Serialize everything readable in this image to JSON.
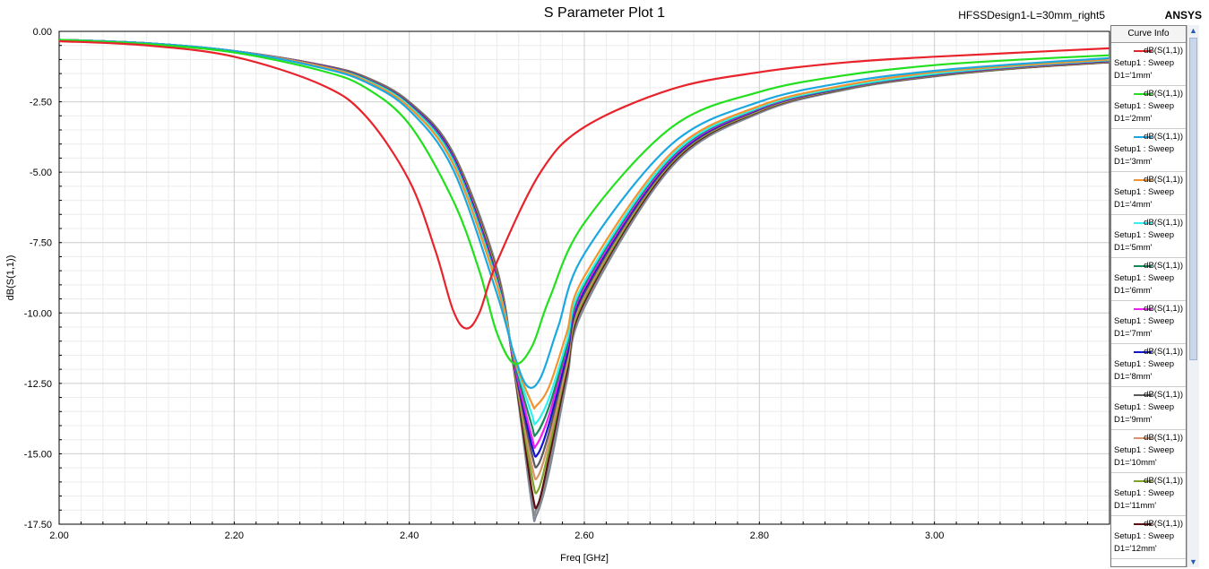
{
  "header": {
    "title": "S Parameter Plot 1",
    "design": "HFSSDesign1-L=30mm_right5",
    "brand": "ANSYS"
  },
  "legend": {
    "title": "Curve Info"
  },
  "chart_data": {
    "type": "line",
    "title": "S Parameter Plot 1",
    "xlabel": "Freq [GHz]",
    "ylabel": "dB(S(1,1))",
    "xlim": [
      2.0,
      3.2
    ],
    "ylim": [
      -17.5,
      0.0
    ],
    "x_ticks": [
      "2.00",
      "2.20",
      "2.40",
      "2.60",
      "2.80",
      "3.00"
    ],
    "y_ticks": [
      "0.00",
      "-2.50",
      "-5.00",
      "-7.50",
      "-10.00",
      "-12.50",
      "-15.00",
      "-17.50"
    ],
    "grid": true,
    "legend_position": "right",
    "series": [
      {
        "name": "dB(S(1,1))",
        "setup": "Setup1 : Sweep",
        "param": "D1='1mm'",
        "color": "#e8232b",
        "x": [
          2.0,
          2.1,
          2.2,
          2.3,
          2.35,
          2.4,
          2.43,
          2.45,
          2.465,
          2.48,
          2.5,
          2.55,
          2.6,
          2.7,
          2.8,
          2.9,
          3.0,
          3.1,
          3.2
        ],
        "y": [
          -0.35,
          -0.5,
          -0.9,
          -1.9,
          -3.0,
          -5.3,
          -7.8,
          -9.9,
          -10.55,
          -10.0,
          -8.2,
          -5.0,
          -3.4,
          -2.05,
          -1.45,
          -1.1,
          -0.9,
          -0.75,
          -0.6
        ]
      },
      {
        "name": "dB(S(1,1))",
        "setup": "Setup1 : Sweep",
        "param": "D1='2mm'",
        "color": "#22e01d",
        "x": [
          2.0,
          2.1,
          2.2,
          2.3,
          2.35,
          2.4,
          2.45,
          2.48,
          2.5,
          2.52,
          2.54,
          2.56,
          2.6,
          2.7,
          2.8,
          2.9,
          3.0,
          3.1,
          3.2
        ],
        "y": [
          -0.3,
          -0.45,
          -0.75,
          -1.4,
          -2.0,
          -3.3,
          -6.0,
          -8.5,
          -10.7,
          -11.8,
          -11.2,
          -9.5,
          -6.8,
          -3.4,
          -2.15,
          -1.55,
          -1.2,
          -1.0,
          -0.85
        ]
      },
      {
        "name": "dB(S(1,1))",
        "setup": "Setup1 : Sweep",
        "param": "D1='3mm'",
        "color": "#1ba8e0",
        "x": [
          2.0,
          2.1,
          2.2,
          2.3,
          2.35,
          2.4,
          2.45,
          2.5,
          2.52,
          2.535,
          2.55,
          2.57,
          2.6,
          2.7,
          2.8,
          2.9,
          3.0,
          3.1,
          3.2
        ],
        "y": [
          -0.3,
          -0.42,
          -0.7,
          -1.3,
          -1.8,
          -2.8,
          -4.9,
          -9.3,
          -11.5,
          -12.6,
          -12.3,
          -10.5,
          -7.9,
          -4.0,
          -2.5,
          -1.8,
          -1.4,
          -1.15,
          -0.95
        ]
      },
      {
        "name": "dB(S(1,1))",
        "setup": "Setup1 : Sweep",
        "param": "D1='4mm'",
        "color": "#f2932d",
        "x": [
          2.0,
          2.1,
          2.2,
          2.3,
          2.35,
          2.4,
          2.45,
          2.5,
          2.52,
          2.54,
          2.545,
          2.56,
          2.58,
          2.6,
          2.7,
          2.8,
          2.9,
          3.0,
          3.1,
          3.2
        ],
        "y": [
          -0.3,
          -0.42,
          -0.7,
          -1.25,
          -1.75,
          -2.7,
          -4.7,
          -9.0,
          -11.6,
          -13.2,
          -13.3,
          -12.6,
          -10.7,
          -8.7,
          -4.3,
          -2.65,
          -1.9,
          -1.45,
          -1.2,
          -1.0
        ]
      },
      {
        "name": "dB(S(1,1))",
        "setup": "Setup1 : Sweep",
        "param": "D1='5mm'",
        "color": "#2ef2f2",
        "x": [
          2.0,
          2.1,
          2.2,
          2.3,
          2.35,
          2.4,
          2.45,
          2.5,
          2.52,
          2.54,
          2.545,
          2.56,
          2.58,
          2.6,
          2.7,
          2.8,
          2.9,
          3.0,
          3.1,
          3.2
        ],
        "y": [
          -0.3,
          -0.42,
          -0.7,
          -1.25,
          -1.72,
          -2.65,
          -4.6,
          -8.9,
          -11.6,
          -13.6,
          -13.9,
          -13.0,
          -11.0,
          -8.9,
          -4.4,
          -2.7,
          -1.95,
          -1.5,
          -1.22,
          -1.02
        ]
      },
      {
        "name": "dB(S(1,1))",
        "setup": "Setup1 : Sweep",
        "param": "D1='6mm'",
        "color": "#148a5a",
        "x": [
          2.0,
          2.1,
          2.2,
          2.3,
          2.35,
          2.4,
          2.45,
          2.5,
          2.52,
          2.54,
          2.545,
          2.56,
          2.58,
          2.6,
          2.7,
          2.8,
          2.9,
          3.0,
          3.1,
          3.2
        ],
        "y": [
          -0.3,
          -0.42,
          -0.7,
          -1.24,
          -1.7,
          -2.62,
          -4.55,
          -8.85,
          -11.7,
          -14.0,
          -14.3,
          -13.3,
          -11.2,
          -9.0,
          -4.45,
          -2.72,
          -1.97,
          -1.52,
          -1.23,
          -1.03
        ]
      },
      {
        "name": "dB(S(1,1))",
        "setup": "Setup1 : Sweep",
        "param": "D1='7mm'",
        "color": "#f01ef0",
        "x": [
          2.0,
          2.1,
          2.2,
          2.3,
          2.35,
          2.4,
          2.45,
          2.5,
          2.52,
          2.54,
          2.545,
          2.56,
          2.58,
          2.6,
          2.7,
          2.8,
          2.9,
          3.0,
          3.1,
          3.2
        ],
        "y": [
          -0.3,
          -0.42,
          -0.7,
          -1.23,
          -1.69,
          -2.6,
          -4.5,
          -8.8,
          -11.8,
          -14.4,
          -14.7,
          -13.6,
          -11.3,
          -9.1,
          -4.5,
          -2.74,
          -1.98,
          -1.53,
          -1.24,
          -1.04
        ]
      },
      {
        "name": "dB(S(1,1))",
        "setup": "Setup1 : Sweep",
        "param": "D1='8mm'",
        "color": "#1414d0",
        "x": [
          2.0,
          2.1,
          2.2,
          2.3,
          2.35,
          2.4,
          2.45,
          2.5,
          2.52,
          2.54,
          2.547,
          2.56,
          2.58,
          2.6,
          2.7,
          2.8,
          2.9,
          3.0,
          3.1,
          3.2
        ],
        "y": [
          -0.3,
          -0.42,
          -0.7,
          -1.22,
          -1.68,
          -2.58,
          -4.45,
          -8.75,
          -11.85,
          -14.7,
          -15.0,
          -13.9,
          -11.5,
          -9.2,
          -4.55,
          -2.76,
          -1.99,
          -1.54,
          -1.25,
          -1.05
        ]
      },
      {
        "name": "dB(S(1,1))",
        "setup": "Setup1 : Sweep",
        "param": "D1='9mm'",
        "color": "#5a5a5a",
        "x": [
          2.0,
          2.1,
          2.2,
          2.3,
          2.35,
          2.4,
          2.45,
          2.5,
          2.52,
          2.54,
          2.547,
          2.56,
          2.58,
          2.6,
          2.7,
          2.8,
          2.9,
          3.0,
          3.1,
          3.2
        ],
        "y": [
          -0.3,
          -0.42,
          -0.7,
          -1.22,
          -1.67,
          -2.56,
          -4.42,
          -8.7,
          -11.9,
          -15.0,
          -15.4,
          -14.2,
          -11.6,
          -9.3,
          -4.6,
          -2.78,
          -2.0,
          -1.55,
          -1.26,
          -1.06
        ]
      },
      {
        "name": "dB(S(1,1))",
        "setup": "Setup1 : Sweep",
        "param": "D1='10mm'",
        "color": "#d6946a",
        "x": [
          2.0,
          2.1,
          2.2,
          2.3,
          2.35,
          2.4,
          2.45,
          2.5,
          2.52,
          2.54,
          2.547,
          2.56,
          2.58,
          2.6,
          2.7,
          2.8,
          2.9,
          3.0,
          3.1,
          3.2
        ],
        "y": [
          -0.3,
          -0.42,
          -0.7,
          -1.21,
          -1.66,
          -2.55,
          -4.4,
          -8.65,
          -11.95,
          -15.4,
          -15.8,
          -14.5,
          -11.8,
          -9.4,
          -4.62,
          -2.8,
          -2.01,
          -1.56,
          -1.27,
          -1.07
        ]
      },
      {
        "name": "dB(S(1,1))",
        "setup": "Setup1 : Sweep",
        "param": "D1='11mm'",
        "color": "#7ea329",
        "x": [
          2.0,
          2.1,
          2.2,
          2.3,
          2.35,
          2.4,
          2.45,
          2.5,
          2.52,
          2.54,
          2.547,
          2.56,
          2.58,
          2.6,
          2.7,
          2.8,
          2.9,
          3.0,
          3.1,
          3.2
        ],
        "y": [
          -0.3,
          -0.42,
          -0.7,
          -1.21,
          -1.65,
          -2.54,
          -4.38,
          -8.6,
          -12.0,
          -15.8,
          -16.3,
          -14.8,
          -11.9,
          -9.5,
          -4.65,
          -2.82,
          -2.02,
          -1.57,
          -1.28,
          -1.08
        ]
      },
      {
        "name": "dB(S(1,1))",
        "setup": "Setup1 : Sweep",
        "param": "D1='12mm'",
        "color": "#5a0f14",
        "x": [
          2.0,
          2.1,
          2.2,
          2.3,
          2.35,
          2.4,
          2.45,
          2.5,
          2.52,
          2.54,
          2.547,
          2.56,
          2.58,
          2.6,
          2.7,
          2.8,
          2.9,
          3.0,
          3.1,
          3.2
        ],
        "y": [
          -0.3,
          -0.42,
          -0.7,
          -1.2,
          -1.64,
          -2.53,
          -4.36,
          -8.55,
          -12.05,
          -16.3,
          -16.8,
          -15.1,
          -12.1,
          -9.6,
          -4.7,
          -2.84,
          -2.03,
          -1.58,
          -1.29,
          -1.09
        ]
      },
      {
        "color": "#7f8a96",
        "x": [
          2.0,
          2.1,
          2.2,
          2.3,
          2.35,
          2.4,
          2.45,
          2.5,
          2.52,
          2.54,
          2.545,
          2.56,
          2.58,
          2.6,
          2.7,
          2.8,
          2.9,
          3.0,
          3.1,
          3.2
        ],
        "y": [
          -0.3,
          -0.42,
          -0.7,
          -1.2,
          -1.62,
          -2.5,
          -4.3,
          -8.4,
          -12.1,
          -16.8,
          -17.2,
          -15.6,
          -12.4,
          -9.8,
          -4.8,
          -2.9,
          -2.06,
          -1.6,
          -1.3,
          -1.1
        ]
      },
      {
        "color": "#8c8c8c",
        "x": [
          2.0,
          2.1,
          2.2,
          2.3,
          2.35,
          2.4,
          2.45,
          2.5,
          2.52,
          2.54,
          2.545,
          2.56,
          2.58,
          2.6,
          2.7,
          2.8,
          2.9,
          3.0,
          3.1,
          3.2
        ],
        "y": [
          -0.3,
          -0.42,
          -0.7,
          -1.2,
          -1.63,
          -2.52,
          -4.33,
          -8.48,
          -12.08,
          -16.6,
          -17.0,
          -15.4,
          -12.3,
          -9.7,
          -4.75,
          -2.87,
          -2.05,
          -1.59,
          -1.3,
          -1.1
        ]
      }
    ]
  }
}
